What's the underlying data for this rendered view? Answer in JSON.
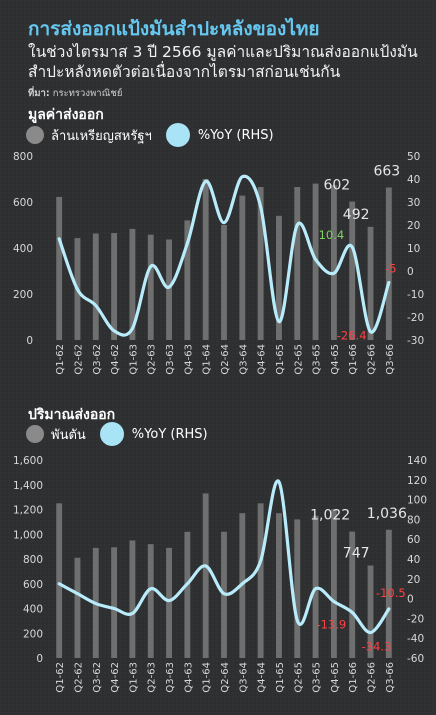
{
  "title": "การส่งออกแป้งมันสำปะหลังของไทย",
  "subtitle": "ในช่วงไตรมาส 3 ปี 2566 มูลค่าและปริมาณส่งออกแป้งมันสำปะหลังหดตัวต่อเนื่องจากไตรมาสก่อนเช่นกัน",
  "source_label": "ที่มา:",
  "source_text": "กระทรวงพาณิชย์",
  "colors": {
    "background": "#2f3032",
    "bar": "#6f6f6f",
    "line": "#b9ecfb",
    "title": "#66c8f0",
    "positive": "#7ed35c",
    "negative": "#ff4040"
  },
  "chart_data": [
    {
      "type": "bar",
      "title": "มูลค่าส่งออก",
      "categories": [
        "Q1-62",
        "Q2-62",
        "Q3-62",
        "Q4-62",
        "Q1-63",
        "Q2-63",
        "Q3-63",
        "Q4-63",
        "Q1-64",
        "Q2-64",
        "Q3-64",
        "Q4-64",
        "Q1-65",
        "Q2-65",
        "Q3-65",
        "Q4-65",
        "Q1-66",
        "Q2-66",
        "Q3-66"
      ],
      "series": [
        {
          "name": "ล้านเหรียญสหรัฐฯ",
          "type": "bar",
          "axis": "left",
          "values": [
            622,
            443,
            463,
            465,
            483,
            458,
            437,
            520,
            700,
            500,
            628,
            665,
            540,
            665,
            680,
            673,
            602,
            492,
            663
          ]
        },
        {
          "name": "%YoY (RHS)",
          "type": "line",
          "axis": "right",
          "values": [
            14,
            -8,
            -15,
            -26,
            -25,
            2,
            -7,
            12,
            39,
            21,
            41,
            28,
            -22,
            20,
            5,
            -1,
            10.4,
            -26.4,
            -5
          ]
        }
      ],
      "ylim": [
        0,
        800
      ],
      "yticks": [
        "0",
        "200",
        "400",
        "600",
        "800"
      ],
      "y2lim": [
        -30,
        50
      ],
      "y2ticks": [
        "-30",
        "-20",
        "-10",
        "0",
        "10",
        "20",
        "30",
        "40",
        "50"
      ],
      "bar_labels": [
        {
          "index": 16,
          "text": "602"
        },
        {
          "index": 17,
          "text": "492"
        },
        {
          "index": 18,
          "text": "663"
        }
      ],
      "line_labels": [
        {
          "index": 16,
          "text": "10.4",
          "color": "positive"
        },
        {
          "index": 17,
          "text": "-26.4",
          "color": "negative"
        },
        {
          "index": 18,
          "text": "-5",
          "color": "negative"
        }
      ],
      "grid": false
    },
    {
      "type": "bar",
      "title": "ปริมาณส่งออก",
      "categories": [
        "Q1-62",
        "Q2-62",
        "Q3-62",
        "Q4-62",
        "Q1-63",
        "Q2-63",
        "Q3-63",
        "Q4-63",
        "Q1-64",
        "Q2-64",
        "Q3-64",
        "Q4-64",
        "Q1-65",
        "Q2-65",
        "Q3-65",
        "Q4-65",
        "Q1-66",
        "Q2-66",
        "Q3-66"
      ],
      "series": [
        {
          "name": "พันตัน",
          "type": "bar",
          "axis": "left",
          "values": [
            1250,
            810,
            890,
            895,
            950,
            920,
            890,
            1020,
            1330,
            1020,
            1170,
            1250,
            1170,
            1120,
            1150,
            1200,
            1022,
            747,
            1036
          ]
        },
        {
          "name": "%YoY (RHS)",
          "type": "line",
          "axis": "right",
          "values": [
            15,
            5,
            -5,
            -10,
            -15,
            10,
            -2,
            15,
            33,
            5,
            15,
            38,
            118,
            -22,
            10,
            -3,
            -13.9,
            -34.3,
            -10.5
          ]
        }
      ],
      "ylim": [
        0,
        1600
      ],
      "yticks": [
        "0",
        "200",
        "400",
        "600",
        "800",
        "1,000",
        "1,200",
        "1,400",
        "1,600"
      ],
      "y2lim": [
        -60,
        140
      ],
      "y2ticks": [
        "-60",
        "-40",
        "-20",
        "0",
        "20",
        "40",
        "60",
        "80",
        "100",
        "120",
        "140"
      ],
      "bar_labels": [
        {
          "index": 16,
          "text": "1,022"
        },
        {
          "index": 17,
          "text": "747"
        },
        {
          "index": 18,
          "text": "1,036"
        }
      ],
      "line_labels": [
        {
          "index": 16,
          "text": "-13.9",
          "color": "negative"
        },
        {
          "index": 17,
          "text": "-34.3",
          "color": "negative"
        },
        {
          "index": 18,
          "text": "-10.5",
          "color": "negative"
        }
      ],
      "grid": false
    }
  ]
}
